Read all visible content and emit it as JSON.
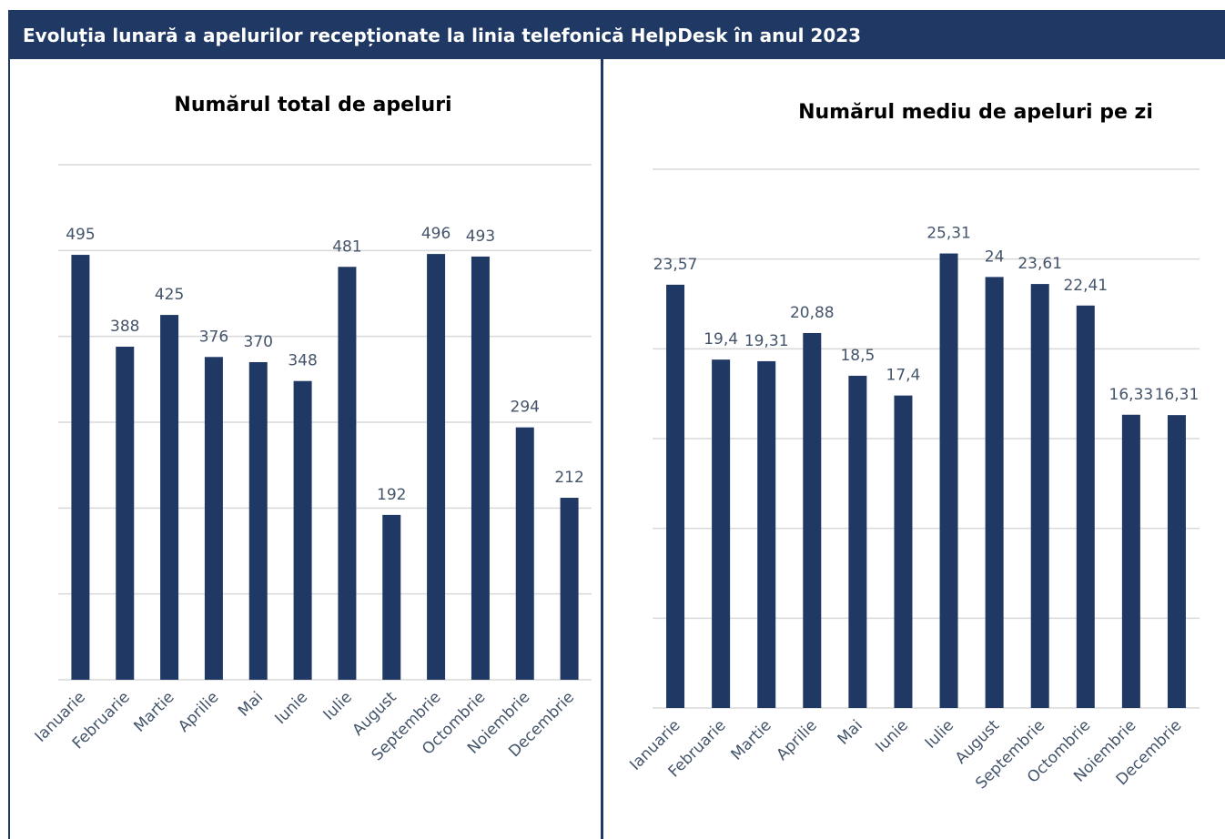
{
  "header": {
    "title": "Evoluția lunară a apelurilor recepționate la linia telefonică HelpDesk în anul 2023"
  },
  "colors": {
    "bar": "#1f3864",
    "banner": "#1f3864",
    "label": "#44546a",
    "grid": "#d9d9d9"
  },
  "chart_data": [
    {
      "type": "bar",
      "title": "Numărul total de apeluri",
      "categories": [
        "Ianuarie",
        "Februarie",
        "Martie",
        "Aprilie",
        "Mai",
        "Iunie",
        "Iulie",
        "August",
        "Septembrie",
        "Octombrie",
        "Noiembrie",
        "Decembrie"
      ],
      "values": [
        495,
        388,
        425,
        376,
        370,
        348,
        481,
        192,
        496,
        493,
        294,
        212
      ],
      "labels": [
        "495",
        "388",
        "425",
        "376",
        "370",
        "348",
        "481",
        "192",
        "496",
        "493",
        "294",
        "212"
      ],
      "ylim": [
        0,
        600
      ],
      "gridlines": [
        0,
        100,
        200,
        300,
        400,
        500,
        600
      ],
      "grid": true,
      "legend": "none"
    },
    {
      "type": "bar",
      "title": "Numărul mediu de apeluri pe zi",
      "categories": [
        "Ianuarie",
        "Februarie",
        "Martie",
        "Aprilie",
        "Mai",
        "Iunie",
        "Iulie",
        "August",
        "Septembrie",
        "Octombrie",
        "Noiembrie",
        "Decembrie"
      ],
      "values": [
        23.57,
        19.4,
        19.31,
        20.88,
        18.5,
        17.4,
        25.31,
        24,
        23.61,
        22.41,
        16.33,
        16.31
      ],
      "labels": [
        "23,57",
        "19,4",
        "19,31",
        "20,88",
        "18,5",
        "17,4",
        "25,31",
        "24",
        "23,61",
        "22,41",
        "16,33",
        "16,31"
      ],
      "ylim": [
        0,
        30
      ],
      "gridlines": [
        0,
        5,
        10,
        15,
        20,
        25,
        30
      ],
      "grid": true,
      "legend": "none"
    }
  ]
}
